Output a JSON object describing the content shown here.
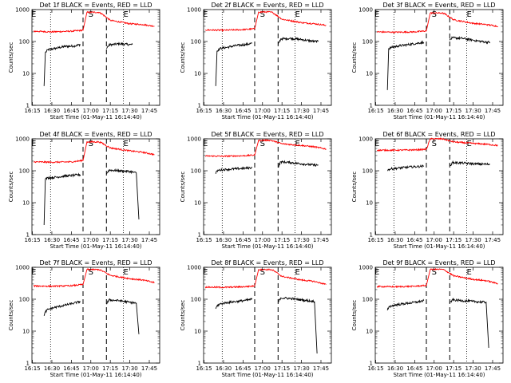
{
  "chart_data": {
    "type": "line",
    "date": "01-May-11",
    "xlabel": "Start Time (01-May-11 16:14:40)",
    "ylabel": "Counts/sec",
    "yscale": "log",
    "ylim": [
      1,
      1000
    ],
    "y_ticks": [
      "1",
      "10",
      "100",
      "1000"
    ],
    "xlim": [
      "16:14:40",
      "17:53:00"
    ],
    "x_ticks": [
      "16:15",
      "16:30",
      "16:45",
      "17:00",
      "17:15",
      "17:30",
      "17:45"
    ],
    "markers": [
      {
        "label": "E",
        "time": "16:16:00",
        "style": "none"
      },
      {
        "label": "",
        "time": "16:29:00",
        "style": "dotted"
      },
      {
        "label": "",
        "time": "16:54:00",
        "style": "dashed"
      },
      {
        "label": "S",
        "time": "17:00:00",
        "style": "none"
      },
      {
        "label": "",
        "time": "17:12:00",
        "style": "dashed"
      },
      {
        "label": "",
        "time": "17:25:00",
        "style": "dotted"
      },
      {
        "label": "E",
        "time": "17:27:00",
        "style": "none"
      }
    ],
    "panels": [
      {
        "title": "Det 1f BLACK = Events, RED = LLD",
        "series": [
          {
            "color": "#000000",
            "times": [
              "16:24:00",
              "16:25:00",
              "16:27:00",
              "16:32:00",
              "16:40:00",
              "16:47:00",
              "16:52:00"
            ],
            "values": [
              4,
              45,
              55,
              60,
              70,
              72,
              80
            ]
          },
          {
            "color": "#000000",
            "times": [
              "17:12:00",
              "17:14:00",
              "17:22:00",
              "17:30:00",
              "17:32:00"
            ],
            "values": [
              60,
              78,
              85,
              80,
              80
            ]
          },
          {
            "color": "#ff0000",
            "times": [
              "16:16:00",
              "16:30:00",
              "16:45:00",
              "16:54:00",
              "16:57:00",
              "17:06:00",
              "17:08:00",
              "17:15:00",
              "17:30:00",
              "17:40:00",
              "17:49:00"
            ],
            "values": [
              210,
              200,
              210,
              225,
              820,
              820,
              760,
              460,
              360,
              340,
              300
            ]
          }
        ]
      },
      {
        "title": "Det 2f BLACK = Events, RED = LLD",
        "series": [
          {
            "color": "#000000",
            "times": [
              "16:24:00",
              "16:25:00",
              "16:27:00",
              "16:32:00",
              "16:40:00",
              "16:47:00",
              "16:52:00"
            ],
            "values": [
              4,
              50,
              60,
              65,
              75,
              80,
              88
            ]
          },
          {
            "color": "#000000",
            "times": [
              "17:12:00",
              "17:14:00",
              "17:22:00",
              "17:30:00",
              "17:40:00",
              "17:43:00"
            ],
            "values": [
              80,
              120,
              125,
              115,
              100,
              100
            ]
          },
          {
            "color": "#ff0000",
            "times": [
              "16:16:00",
              "16:30:00",
              "16:45:00",
              "16:54:00",
              "16:57:00",
              "17:06:00",
              "17:08:00",
              "17:15:00",
              "17:30:00",
              "17:40:00",
              "17:49:00"
            ],
            "values": [
              230,
              225,
              235,
              250,
              840,
              840,
              800,
              500,
              390,
              360,
              320
            ]
          }
        ]
      },
      {
        "title": "Det 3f BLACK = Events, RED = LLD",
        "series": [
          {
            "color": "#000000",
            "times": [
              "16:24:00",
              "16:25:00",
              "16:27:00",
              "16:32:00",
              "16:40:00",
              "16:47:00",
              "16:52:00"
            ],
            "values": [
              3,
              60,
              65,
              72,
              80,
              88,
              95
            ]
          },
          {
            "color": "#000000",
            "times": [
              "17:12:00",
              "17:14:00",
              "17:22:00",
              "17:30:00",
              "17:40:00",
              "17:43:00"
            ],
            "values": [
              110,
              130,
              125,
              110,
              95,
              95
            ]
          },
          {
            "color": "#ff0000",
            "times": [
              "16:16:00",
              "16:30:00",
              "16:45:00",
              "16:54:00",
              "16:57:00",
              "17:06:00",
              "17:08:00",
              "17:15:00",
              "17:30:00",
              "17:40:00",
              "17:49:00"
            ],
            "values": [
              200,
              195,
              200,
              215,
              780,
              780,
              740,
              480,
              370,
              340,
              300
            ]
          }
        ]
      },
      {
        "title": "Det 4f BLACK = Events, RED = LLD",
        "series": [
          {
            "color": "#000000",
            "times": [
              "16:24:00",
              "16:25:00",
              "16:27:00",
              "16:32:00",
              "16:40:00",
              "16:47:00",
              "16:52:00"
            ],
            "values": [
              2,
              55,
              60,
              62,
              68,
              72,
              75
            ]
          },
          {
            "color": "#000000",
            "times": [
              "17:12:00",
              "17:14:00",
              "17:22:00",
              "17:30:00",
              "17:35:00",
              "17:37:00"
            ],
            "values": [
              80,
              105,
              100,
              95,
              85,
              3
            ]
          },
          {
            "color": "#ff0000",
            "times": [
              "16:16:00",
              "16:30:00",
              "16:45:00",
              "16:54:00",
              "16:57:00",
              "17:06:00",
              "17:08:00",
              "17:15:00",
              "17:30:00",
              "17:40:00",
              "17:49:00"
            ],
            "values": [
              190,
              185,
              190,
              210,
              800,
              800,
              760,
              520,
              420,
              380,
              320
            ]
          }
        ]
      },
      {
        "title": "Det 5f BLACK = Events, RED = LLD",
        "series": [
          {
            "color": "#000000",
            "times": [
              "16:24:00",
              "16:25:00",
              "16:27:00",
              "16:32:00",
              "16:40:00",
              "16:47:00",
              "16:52:00"
            ],
            "values": [
              80,
              100,
              105,
              110,
              115,
              120,
              125
            ]
          },
          {
            "color": "#000000",
            "times": [
              "17:12:00",
              "17:14:00",
              "17:22:00",
              "17:30:00",
              "17:40:00",
              "17:43:00"
            ],
            "values": [
              130,
              190,
              180,
              165,
              150,
              150
            ]
          },
          {
            "color": "#ff0000",
            "times": [
              "16:16:00",
              "16:30:00",
              "16:45:00",
              "16:54:00",
              "16:57:00",
              "17:06:00",
              "17:08:00",
              "17:15:00",
              "17:30:00",
              "17:40:00",
              "17:49:00"
            ],
            "values": [
              290,
              285,
              295,
              310,
              900,
              900,
              860,
              700,
              620,
              560,
              480
            ]
          }
        ]
      },
      {
        "title": "Det 6f BLACK = Events, RED = LLD",
        "series": [
          {
            "color": "#000000",
            "times": [
              "16:24:00",
              "16:25:00",
              "16:27:00",
              "16:32:00",
              "16:40:00",
              "16:47:00",
              "16:52:00"
            ],
            "values": [
              100,
              110,
              115,
              120,
              130,
              135,
              140
            ]
          },
          {
            "color": "#000000",
            "times": [
              "17:12:00",
              "17:14:00",
              "17:22:00",
              "17:30:00",
              "17:40:00",
              "17:43:00"
            ],
            "values": [
              140,
              180,
              175,
              165,
              160,
              160
            ]
          },
          {
            "color": "#ff0000",
            "times": [
              "16:16:00",
              "16:30:00",
              "16:45:00",
              "16:54:00",
              "16:57:00",
              "17:06:00",
              "17:08:00",
              "17:15:00",
              "17:30:00",
              "17:40:00",
              "17:49:00"
            ],
            "values": [
              440,
              440,
              450,
              470,
              1000,
              1000,
              960,
              800,
              720,
              680,
              620
            ]
          }
        ]
      },
      {
        "title": "Det 7f BLACK = Events, RED = LLD",
        "series": [
          {
            "color": "#000000",
            "times": [
              "16:24:00",
              "16:25:00",
              "16:27:00",
              "16:32:00",
              "16:40:00",
              "16:47:00",
              "16:52:00"
            ],
            "values": [
              30,
              40,
              48,
              55,
              65,
              75,
              85
            ]
          },
          {
            "color": "#000000",
            "times": [
              "17:12:00",
              "17:14:00",
              "17:22:00",
              "17:30:00",
              "17:35:00",
              "17:37:00"
            ],
            "values": [
              70,
              95,
              90,
              80,
              75,
              8
            ]
          },
          {
            "color": "#ff0000",
            "times": [
              "16:16:00",
              "16:30:00",
              "16:45:00",
              "16:54:00",
              "16:57:00",
              "17:06:00",
              "17:08:00",
              "17:15:00",
              "17:30:00",
              "17:40:00",
              "17:49:00"
            ],
            "values": [
              260,
              255,
              265,
              290,
              850,
              850,
              800,
              560,
              440,
              400,
              330
            ]
          }
        ]
      },
      {
        "title": "Det 8f BLACK = Events, RED = LLD",
        "series": [
          {
            "color": "#000000",
            "times": [
              "16:24:00",
              "16:25:00",
              "16:27:00",
              "16:32:00",
              "16:40:00",
              "16:47:00",
              "16:52:00"
            ],
            "values": [
              50,
              62,
              70,
              78,
              85,
              92,
              100
            ]
          },
          {
            "color": "#000000",
            "times": [
              "17:12:00",
              "17:14:00",
              "17:22:00",
              "17:30:00",
              "17:40:00",
              "17:42:00"
            ],
            "values": [
              80,
              110,
              105,
              95,
              85,
              2
            ]
          },
          {
            "color": "#ff0000",
            "times": [
              "16:16:00",
              "16:30:00",
              "16:45:00",
              "16:54:00",
              "16:57:00",
              "17:06:00",
              "17:08:00",
              "17:15:00",
              "17:30:00",
              "17:40:00",
              "17:49:00"
            ],
            "values": [
              240,
              235,
              245,
              260,
              850,
              850,
              810,
              520,
              400,
              360,
              290
            ]
          }
        ]
      },
      {
        "title": "Det 9f BLACK = Events, RED = LLD",
        "series": [
          {
            "color": "#000000",
            "times": [
              "16:24:00",
              "16:25:00",
              "16:27:00",
              "16:32:00",
              "16:40:00",
              "16:47:00",
              "16:52:00"
            ],
            "values": [
              45,
              55,
              62,
              68,
              75,
              82,
              90
            ]
          },
          {
            "color": "#000000",
            "times": [
              "17:12:00",
              "17:14:00",
              "17:22:00",
              "17:30:00",
              "17:40:00",
              "17:42:00"
            ],
            "values": [
              75,
              95,
              90,
              85,
              80,
              3
            ]
          },
          {
            "color": "#ff0000",
            "times": [
              "16:16:00",
              "16:30:00",
              "16:45:00",
              "16:54:00",
              "16:57:00",
              "17:06:00",
              "17:08:00",
              "17:15:00",
              "17:30:00",
              "17:40:00",
              "17:49:00"
            ],
            "values": [
              250,
              245,
              255,
              270,
              860,
              860,
              820,
              540,
              420,
              380,
              310
            ]
          }
        ]
      }
    ]
  }
}
